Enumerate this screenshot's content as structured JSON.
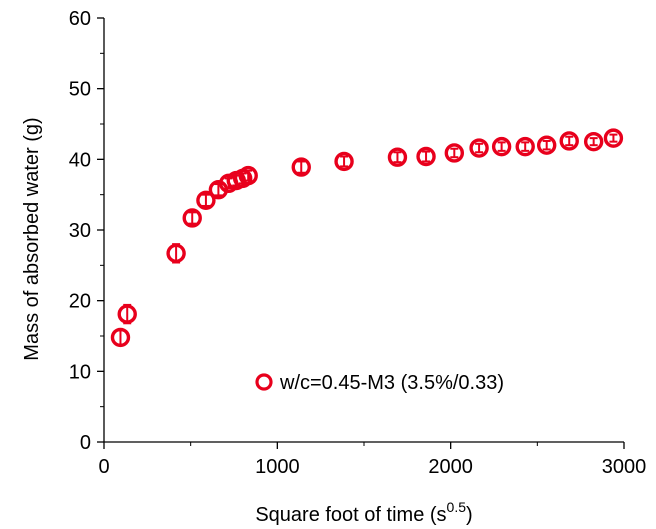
{
  "chart_data": {
    "type": "scatter",
    "title": "",
    "xlabel": "Square foot of time (s",
    "xlabel_sup": "0.5",
    "xlabel_close": ")",
    "ylabel": "Mass of absorbed water (g)",
    "xlim": [
      0,
      3000
    ],
    "ylim": [
      0,
      60
    ],
    "xticks": [
      0,
      1000,
      2000,
      3000
    ],
    "yticks": [
      0,
      10,
      20,
      30,
      40,
      50,
      60
    ],
    "grid": false,
    "legend_position": "bottom-right",
    "series": [
      {
        "name": "w/c=0.45-M3 (3.5%/0.33)",
        "color": "#e8001c",
        "marker": "open-circle",
        "x": [
          95,
          134,
          416,
          509,
          588,
          660,
          719,
          763,
          800,
          832,
          1138,
          1385,
          1693,
          1858,
          2021,
          2164,
          2294,
          2430,
          2554,
          2684,
          2825,
          2939
        ],
        "y": [
          14.8,
          18.1,
          26.7,
          31.7,
          34.2,
          35.7,
          36.6,
          37.0,
          37.3,
          37.7,
          38.9,
          39.7,
          40.3,
          40.4,
          40.9,
          41.6,
          41.8,
          41.8,
          42.0,
          42.6,
          42.5,
          43.0
        ],
        "error": [
          1.0,
          1.3,
          1.3,
          0.8,
          0.8,
          0.8,
          0.7,
          0.7,
          0.7,
          0.7,
          0.8,
          0.7,
          0.7,
          0.7,
          0.6,
          0.6,
          0.6,
          0.6,
          0.6,
          0.6,
          0.5,
          0.5
        ]
      }
    ]
  }
}
